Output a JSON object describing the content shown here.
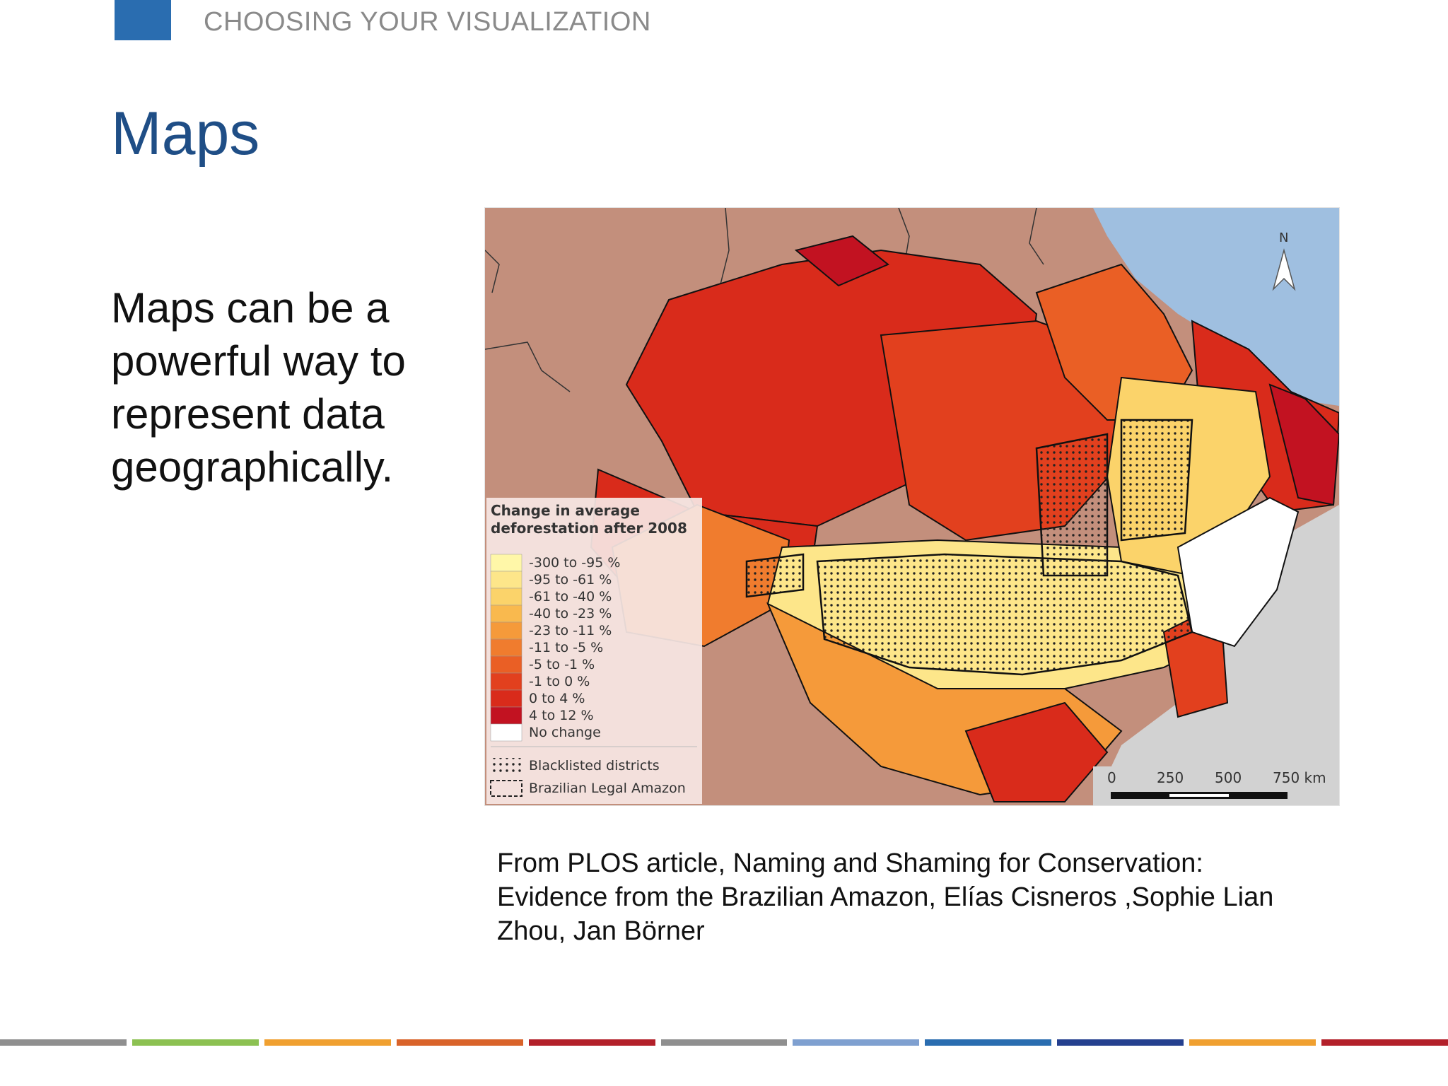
{
  "header": {
    "section_label": "CHOOSING YOUR VISUALIZATION"
  },
  "slide": {
    "title": "Maps",
    "body": "Maps can be a powerful way to represent data geographically.",
    "caption": "From PLOS article, Naming and Shaming for Conservation: Evidence from the Brazilian Amazon, Elías Cisneros ,Sophie Lian Zhou, Jan Börner"
  },
  "map": {
    "north_label": "N",
    "legend": {
      "title_line1": "Change in average",
      "title_line2": "deforestation after 2008",
      "classes": [
        {
          "label": "-300 to -95 %",
          "color": "#fff7a8"
        },
        {
          "label": "-95 to -61 %",
          "color": "#fde68a"
        },
        {
          "label": "-61 to -40 %",
          "color": "#fbd36a"
        },
        {
          "label": "-40 to -23 %",
          "color": "#f9b94e"
        },
        {
          "label": "-23 to -11 %",
          "color": "#f59a3a"
        },
        {
          "label": "-11 to -5 %",
          "color": "#f07c2e"
        },
        {
          "label": "-5 to -1 %",
          "color": "#ea5f25"
        },
        {
          "label": "-1 to 0 %",
          "color": "#e2401e"
        },
        {
          "label": "0 to 4 %",
          "color": "#d92b1b"
        },
        {
          "label": "4 to 12 %",
          "color": "#c21221"
        },
        {
          "label": "No change",
          "color": "#ffffff"
        }
      ],
      "blacklisted_label": "Blacklisted districts",
      "legal_amazon_label": "Brazilian Legal Amazon"
    },
    "scale_labels": [
      "0",
      "250",
      "500",
      "750 km"
    ]
  },
  "footer": {
    "colors": [
      "#8f8f8f",
      "#8cc152",
      "#f0a030",
      "#d9632a",
      "#b3202a",
      "#8f8f8f",
      "#7fa0d0",
      "#2a6db0",
      "#25408f",
      "#f0a030",
      "#b3202a"
    ]
  }
}
